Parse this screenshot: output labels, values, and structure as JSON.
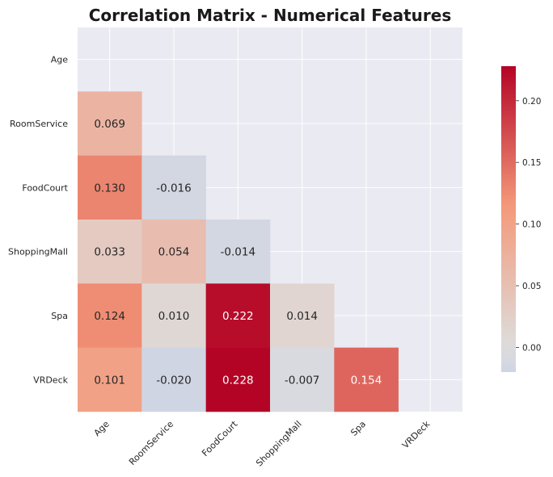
{
  "chart_data": {
    "type": "heatmap",
    "title": "Correlation Matrix - Numerical Features",
    "variables": [
      "Age",
      "RoomService",
      "FoodCourt",
      "ShoppingMall",
      "Spa",
      "VRDeck"
    ],
    "mask": "upper-triangle-including-diagonal",
    "values": [
      [
        null,
        null,
        null,
        null,
        null,
        null
      ],
      [
        0.069,
        null,
        null,
        null,
        null,
        null
      ],
      [
        0.13,
        -0.016,
        null,
        null,
        null,
        null
      ],
      [
        0.033,
        0.054,
        -0.014,
        null,
        null,
        null
      ],
      [
        0.124,
        0.01,
        0.222,
        0.014,
        null,
        null
      ],
      [
        0.101,
        -0.02,
        0.228,
        -0.007,
        0.154,
        null
      ]
    ],
    "labels": [
      [
        null,
        null,
        null,
        null,
        null,
        null
      ],
      [
        "0.069",
        null,
        null,
        null,
        null,
        null
      ],
      [
        "0.130",
        "-0.016",
        null,
        null,
        null,
        null
      ],
      [
        "0.033",
        "0.054",
        "-0.014",
        null,
        null,
        null
      ],
      [
        "0.124",
        "0.010",
        "0.222",
        "0.014",
        null,
        null
      ],
      [
        "0.101",
        "-0.020",
        "0.228",
        "-0.007",
        "0.154",
        null
      ]
    ],
    "colormap": "coolwarm",
    "center": 0,
    "vmin": -0.228,
    "vmax": 0.228,
    "colorbar": {
      "ticks": [
        0.0,
        0.05,
        0.1,
        0.15,
        0.2
      ],
      "tick_labels": [
        "0.00",
        "0.05",
        "0.10",
        "0.15",
        "0.20"
      ],
      "range_shown": [
        -0.02,
        0.228
      ]
    },
    "grid": true,
    "background": "#eaeaf2"
  }
}
